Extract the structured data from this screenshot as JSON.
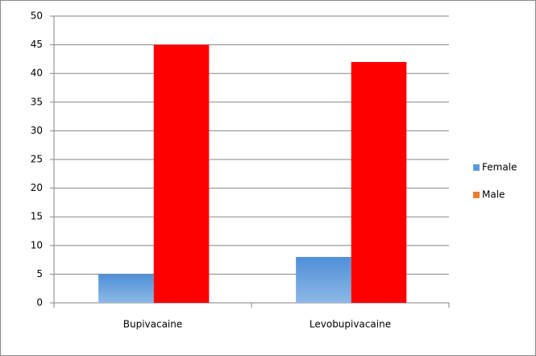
{
  "chart_data": {
    "type": "bar",
    "categories": [
      "Bupivacaine",
      "Levobupivacaine"
    ],
    "series": [
      {
        "name": "Female",
        "color": "#5b9bd5",
        "legend_color": "#5b9bd5",
        "values": [
          5,
          8
        ]
      },
      {
        "name": "Male",
        "color": "#ff0000",
        "legend_color": "#ed7d31",
        "values": [
          45,
          42
        ]
      }
    ],
    "ylim": [
      0,
      50
    ],
    "yticks": [
      0,
      5,
      10,
      15,
      20,
      25,
      30,
      35,
      40,
      45,
      50
    ],
    "grid": true,
    "legend": "right"
  }
}
